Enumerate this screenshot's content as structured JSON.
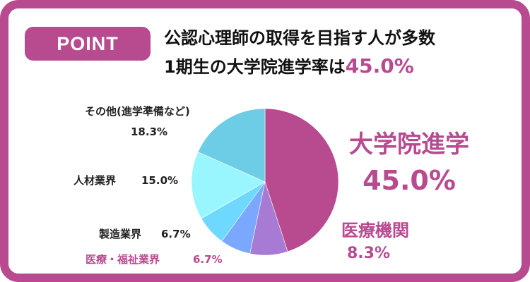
{
  "badge": {
    "label": "POINT"
  },
  "headline": {
    "line1": "公認心理師の取得を目指す人が多数",
    "line2_prefix": "1期生の大学院進学率は",
    "line2_value": "45.0%"
  },
  "colors": {
    "frame": "#b84a90",
    "accent": "#b84a90",
    "text": "#222222"
  },
  "chart_data": {
    "type": "pie",
    "title": "",
    "start": "12 o'clock, clockwise",
    "slices": [
      {
        "name": "大学院進学",
        "value": 45.0,
        "label": "45.0%",
        "color": "#b84a90"
      },
      {
        "name": "医療機関",
        "value": 8.3,
        "label": "8.3%",
        "color": "#a77ad4"
      },
      {
        "name": "医療・福祉業界",
        "value": 6.7,
        "label": "6.7%",
        "color": "#7aa8ff"
      },
      {
        "name": "製造業界",
        "value": 6.7,
        "label": "6.7%",
        "color": "#6fd8ff"
      },
      {
        "name": "人材業界",
        "value": 15.0,
        "label": "15.0%",
        "color": "#99f6ff"
      },
      {
        "name": "その他(進学準備など)",
        "value": 18.3,
        "label": "18.3%",
        "color": "#6dcde6"
      }
    ]
  }
}
